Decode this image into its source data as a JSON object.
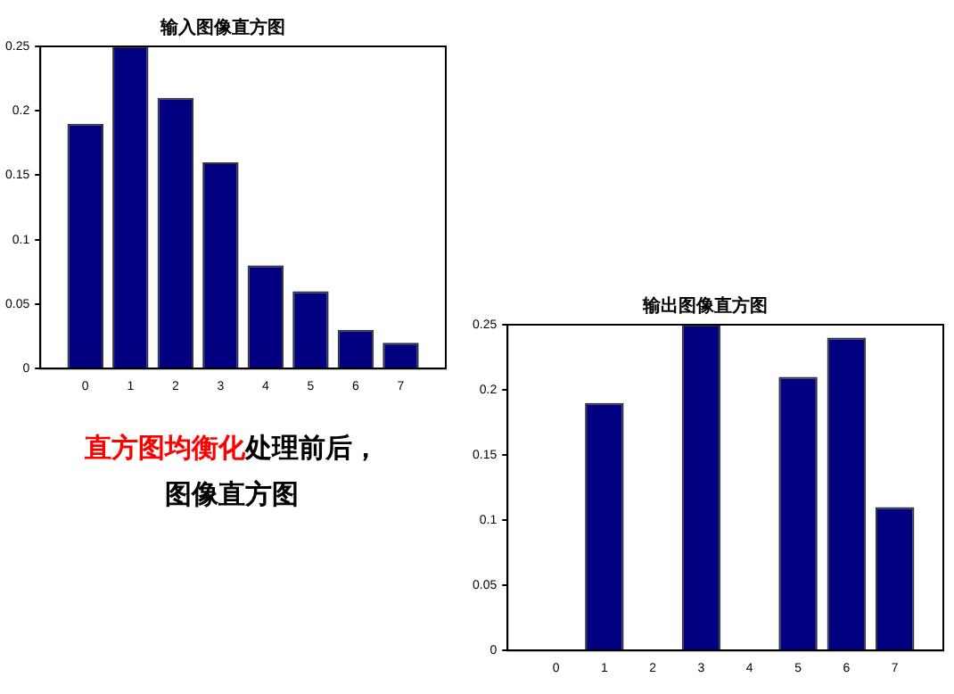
{
  "chart_data": [
    {
      "type": "bar",
      "title": "输入图像直方图",
      "x": [
        0,
        1,
        2,
        3,
        4,
        5,
        6,
        7
      ],
      "values": [
        0.19,
        0.25,
        0.21,
        0.16,
        0.08,
        0.06,
        0.03,
        0.02
      ],
      "color": "#000080",
      "xlim": [
        -1,
        8
      ],
      "xticks": [
        0,
        1,
        2,
        3,
        4,
        5,
        6,
        7
      ],
      "ylim": [
        0,
        0.25
      ],
      "yticks": [
        0,
        0.05,
        0.1,
        0.15,
        0.2,
        0.25
      ],
      "grid": false,
      "legend": false
    },
    {
      "type": "bar",
      "title": "输出图像直方图",
      "x": [
        0,
        1,
        2,
        3,
        4,
        5,
        6,
        7
      ],
      "values": [
        0,
        0.19,
        0,
        0.25,
        0,
        0.21,
        0.24,
        0.11
      ],
      "color": "#000080",
      "xlim": [
        -1,
        8
      ],
      "xticks": [
        0,
        1,
        2,
        3,
        4,
        5,
        6,
        7
      ],
      "ylim": [
        0,
        0.25
      ],
      "yticks": [
        0,
        0.05,
        0.1,
        0.15,
        0.2,
        0.25
      ],
      "grid": false,
      "legend": false
    },
    {
      "type": "other",
      "annotations": [
        "直方图均衡化",
        "处理前后，",
        "图像直方图"
      ]
    }
  ]
}
